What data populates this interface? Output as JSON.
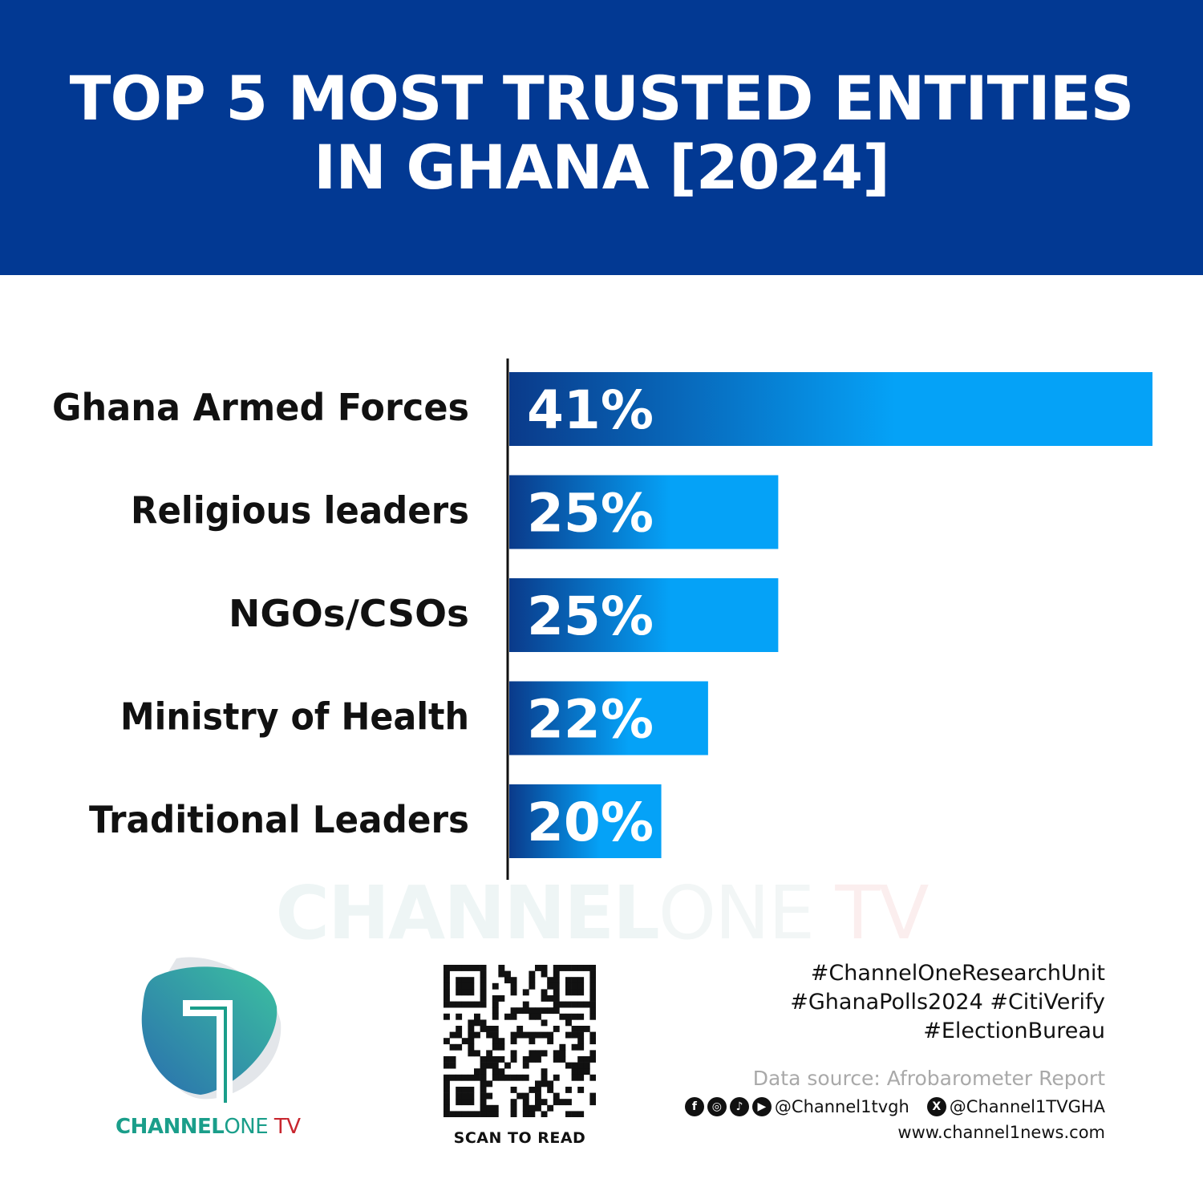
{
  "header": {
    "title_line1": "TOP 5 MOST TRUSTED ENTITIES",
    "title_line2": "IN GHANA [2024]"
  },
  "colors": {
    "header_bg": "#023993",
    "bar_start": "#0a3a8a",
    "bar_end": "#05a2f7",
    "logo_teal": "#1a9e8a",
    "logo_red": "#c8262e"
  },
  "chart_data": {
    "type": "bar",
    "orientation": "horizontal",
    "categories": [
      "Ghana Armed Forces",
      "Religious leaders",
      "NGOs/CSOs",
      "Ministry of Health",
      "Traditional Leaders"
    ],
    "values": [
      41,
      25,
      25,
      22,
      20
    ],
    "value_labels": [
      "41%",
      "25%",
      "25%",
      "22%",
      "20%"
    ],
    "xlim": [
      13.5,
      41
    ],
    "grid": false,
    "title": "",
    "xlabel": "",
    "ylabel": ""
  },
  "watermark": {
    "a": "CHANNEL",
    "b": "ONE",
    "c": " TV"
  },
  "logo": {
    "a": "CHANNEL",
    "b": "ONE",
    "c": " TV"
  },
  "qr": {
    "label": "SCAN TO READ"
  },
  "footer": {
    "tags": [
      "#ChannelOneResearchUnit",
      "#GhanaPolls2024 #CitiVerify",
      "#ElectionBureau"
    ],
    "source": "Data source: Afrobarometer Report",
    "social_handle": "@Channel1tvgh",
    "x_handle": "@Channel1TVGHA",
    "website": "www.channel1news.com",
    "icons": [
      "facebook-icon",
      "instagram-icon",
      "tiktok-icon",
      "youtube-icon",
      "x-icon"
    ]
  }
}
